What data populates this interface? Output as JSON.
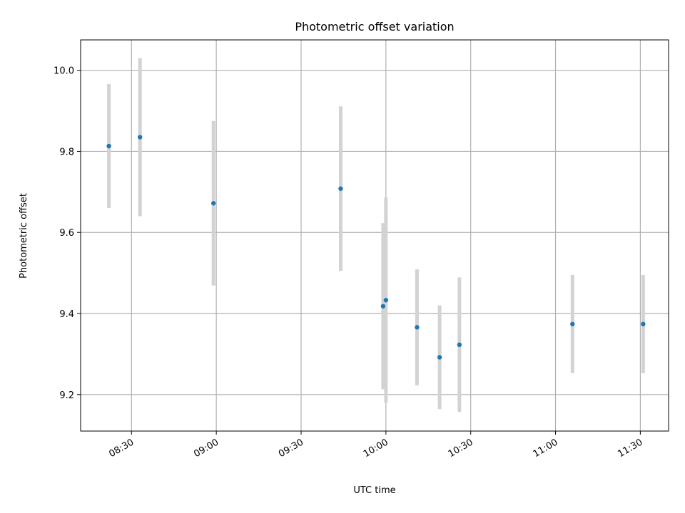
{
  "chart_data": {
    "type": "scatter",
    "title": "Photometric offset variation",
    "xlabel": "UTC time",
    "ylabel": "Photometric offset",
    "x_unit": "UTC time (HH:MM)",
    "xlim": [
      "08:12",
      "11:40"
    ],
    "ylim": [
      9.11,
      10.075
    ],
    "grid": true,
    "legend": "none",
    "x_ticks": [
      "08:30",
      "09:00",
      "09:30",
      "10:00",
      "10:30",
      "11:00",
      "11:30"
    ],
    "y_ticks": [
      "9.2",
      "9.4",
      "9.6",
      "9.8",
      "10.0"
    ],
    "points": [
      {
        "x": "08:22",
        "y": 9.813,
        "err": 0.153
      },
      {
        "x": "08:33",
        "y": 9.835,
        "err": 0.195
      },
      {
        "x": "08:59",
        "y": 9.672,
        "err": 0.203
      },
      {
        "x": "09:44",
        "y": 9.708,
        "err": 0.203
      },
      {
        "x": "09:59",
        "y": 9.418,
        "err": 0.205
      },
      {
        "x": "10:00",
        "y": 9.433,
        "err": 0.253
      },
      {
        "x": "10:11",
        "y": 9.366,
        "err": 0.143
      },
      {
        "x": "10:19",
        "y": 9.292,
        "err": 0.128
      },
      {
        "x": "10:26",
        "y": 9.323,
        "err": 0.166
      },
      {
        "x": "11:06",
        "y": 9.374,
        "err": 0.121
      },
      {
        "x": "11:31",
        "y": 9.374,
        "err": 0.121
      }
    ],
    "colors": {
      "point": "#1f77b4",
      "errorbar": "#d3d3d3",
      "grid": "#b0b0b0",
      "axes": "#000000"
    }
  }
}
